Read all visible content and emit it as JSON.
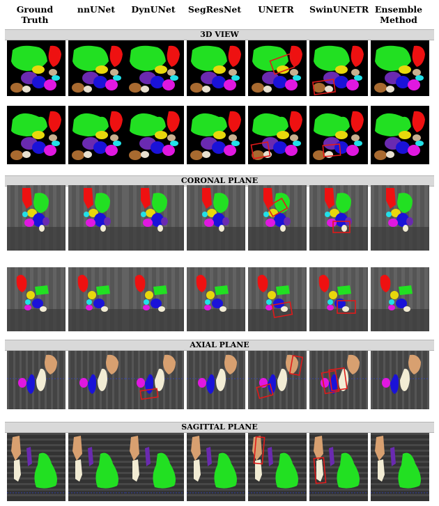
{
  "headers": [
    "Ground\nTruth",
    "nnUNet",
    "DynUNet",
    "SegResNet",
    "UNETR",
    "SwinUNETR",
    "Ensemble\nMethod"
  ],
  "sections": [
    "3D VIEW",
    "CORONAL PLANE",
    "AXIAL PLANE",
    "SAGITTAL PLANE"
  ],
  "colors": {
    "green": "#22e022",
    "red": "#ee1111",
    "yellow": "#e8d80c",
    "blue": "#1a12d8",
    "purple": "#6a2ab0",
    "magenta": "#e018e0",
    "cyan": "#22e0e8",
    "tan": "#d8a070",
    "bone": "#f2ecd4",
    "highlight": "#e01a1a"
  }
}
